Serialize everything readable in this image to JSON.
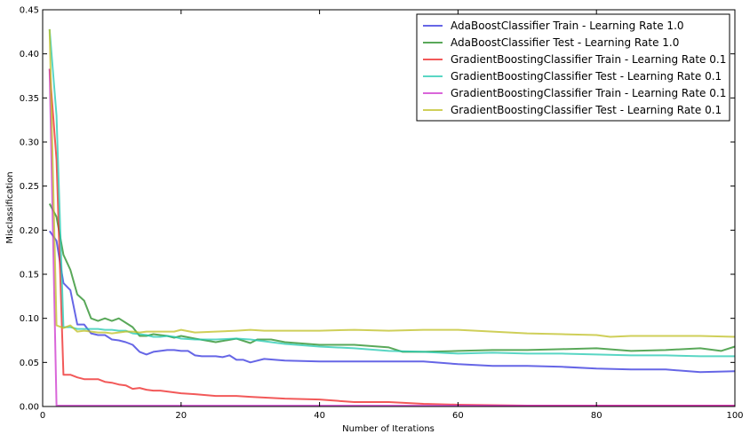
{
  "chart_data": {
    "type": "line",
    "title": "",
    "xlabel": "Number of Iterations",
    "ylabel": "Misclassification",
    "xlim": [
      0,
      100
    ],
    "ylim": [
      0,
      0.45
    ],
    "xticks": [
      "0",
      "20",
      "40",
      "60",
      "80",
      "100"
    ],
    "yticks": [
      "0.00",
      "0.05",
      "0.10",
      "0.15",
      "0.20",
      "0.25",
      "0.30",
      "0.35",
      "0.40",
      "0.45"
    ],
    "grid": false,
    "legend_position": "top-right",
    "series": [
      {
        "name": "AdaBoostClassifier Train - Learning Rate 1.0",
        "color": "#3333dd",
        "x": [
          1,
          2,
          3,
          4,
          5,
          6,
          7,
          8,
          9,
          10,
          11,
          12,
          13,
          14,
          15,
          16,
          17,
          18,
          19,
          20,
          21,
          22,
          23,
          24,
          25,
          26,
          27,
          28,
          29,
          30,
          32,
          35,
          40,
          45,
          50,
          55,
          60,
          65,
          70,
          75,
          80,
          85,
          90,
          95,
          100
        ],
        "values": [
          0.199,
          0.188,
          0.14,
          0.132,
          0.093,
          0.093,
          0.083,
          0.081,
          0.081,
          0.076,
          0.075,
          0.073,
          0.07,
          0.062,
          0.059,
          0.062,
          0.063,
          0.064,
          0.064,
          0.063,
          0.063,
          0.058,
          0.057,
          0.057,
          0.057,
          0.056,
          0.058,
          0.053,
          0.053,
          0.05,
          0.054,
          0.052,
          0.051,
          0.051,
          0.051,
          0.051,
          0.048,
          0.046,
          0.046,
          0.045,
          0.043,
          0.042,
          0.042,
          0.039,
          0.04
        ]
      },
      {
        "name": "AdaBoostClassifier Test - Learning Rate 1.0",
        "color": "#228b22",
        "x": [
          1,
          2,
          3,
          4,
          5,
          6,
          7,
          8,
          9,
          10,
          11,
          12,
          13,
          14,
          15,
          16,
          17,
          18,
          19,
          20,
          22,
          25,
          28,
          30,
          31,
          33,
          35,
          40,
          45,
          50,
          52,
          55,
          60,
          65,
          70,
          75,
          80,
          85,
          90,
          95,
          98,
          100
        ],
        "values": [
          0.23,
          0.215,
          0.172,
          0.155,
          0.127,
          0.12,
          0.1,
          0.097,
          0.1,
          0.097,
          0.1,
          0.095,
          0.09,
          0.08,
          0.08,
          0.082,
          0.081,
          0.08,
          0.078,
          0.08,
          0.077,
          0.073,
          0.077,
          0.072,
          0.076,
          0.076,
          0.073,
          0.07,
          0.07,
          0.067,
          0.062,
          0.062,
          0.063,
          0.064,
          0.064,
          0.065,
          0.066,
          0.063,
          0.064,
          0.066,
          0.063,
          0.068
        ]
      },
      {
        "name": "GradientBoostingClassifier Train - Learning Rate 0.1",
        "color": "#ee2222",
        "x": [
          1,
          2,
          3,
          4,
          5,
          6,
          7,
          8,
          9,
          10,
          11,
          12,
          13,
          14,
          15,
          16,
          17,
          18,
          19,
          20,
          22,
          25,
          28,
          30,
          35,
          40,
          45,
          50,
          55,
          60,
          70,
          80,
          90,
          100
        ],
        "values": [
          0.383,
          0.28,
          0.036,
          0.036,
          0.033,
          0.031,
          0.031,
          0.031,
          0.028,
          0.027,
          0.025,
          0.024,
          0.02,
          0.021,
          0.019,
          0.018,
          0.018,
          0.017,
          0.016,
          0.015,
          0.014,
          0.012,
          0.012,
          0.011,
          0.009,
          0.008,
          0.005,
          0.005,
          0.003,
          0.002,
          0.001,
          0.001,
          0.001,
          0.001
        ]
      },
      {
        "name": "GradientBoostingClassifier Test - Learning Rate 0.1",
        "color": "#22c8b0",
        "x": [
          1,
          2,
          3,
          4,
          5,
          6,
          7,
          8,
          9,
          10,
          11,
          12,
          13,
          14,
          15,
          16,
          17,
          18,
          19,
          20,
          22,
          25,
          28,
          30,
          35,
          40,
          45,
          50,
          55,
          60,
          65,
          70,
          75,
          80,
          85,
          90,
          95,
          100
        ],
        "values": [
          0.428,
          0.33,
          0.09,
          0.09,
          0.088,
          0.088,
          0.088,
          0.088,
          0.087,
          0.087,
          0.086,
          0.086,
          0.083,
          0.082,
          0.081,
          0.079,
          0.079,
          0.08,
          0.079,
          0.077,
          0.076,
          0.076,
          0.077,
          0.076,
          0.071,
          0.068,
          0.066,
          0.063,
          0.062,
          0.06,
          0.061,
          0.06,
          0.06,
          0.059,
          0.058,
          0.058,
          0.057,
          0.057
        ]
      },
      {
        "name": "GradientBoostingClassifier Train - Learning Rate 0.1",
        "color": "#cc33cc",
        "x": [
          1,
          2,
          3,
          5,
          10,
          20,
          40,
          60,
          80,
          100
        ],
        "values": [
          0.383,
          0.001,
          0.001,
          0.001,
          0.001,
          0.001,
          0.001,
          0.001,
          0.001,
          0.001
        ]
      },
      {
        "name": "GradientBoostingClassifier Test - Learning Rate 0.1",
        "color": "#bfbf22",
        "x": [
          1,
          2,
          3,
          4,
          5,
          6,
          7,
          8,
          9,
          10,
          11,
          12,
          13,
          14,
          15,
          16,
          17,
          18,
          19,
          20,
          22,
          25,
          28,
          30,
          32,
          35,
          40,
          45,
          50,
          55,
          60,
          65,
          70,
          75,
          80,
          82,
          85,
          90,
          95,
          100
        ],
        "values": [
          0.428,
          0.092,
          0.089,
          0.092,
          0.085,
          0.086,
          0.085,
          0.084,
          0.084,
          0.083,
          0.084,
          0.085,
          0.085,
          0.084,
          0.085,
          0.085,
          0.085,
          0.085,
          0.085,
          0.087,
          0.084,
          0.085,
          0.086,
          0.087,
          0.086,
          0.086,
          0.086,
          0.087,
          0.086,
          0.087,
          0.087,
          0.085,
          0.083,
          0.082,
          0.081,
          0.079,
          0.08,
          0.08,
          0.08,
          0.079
        ]
      }
    ]
  }
}
